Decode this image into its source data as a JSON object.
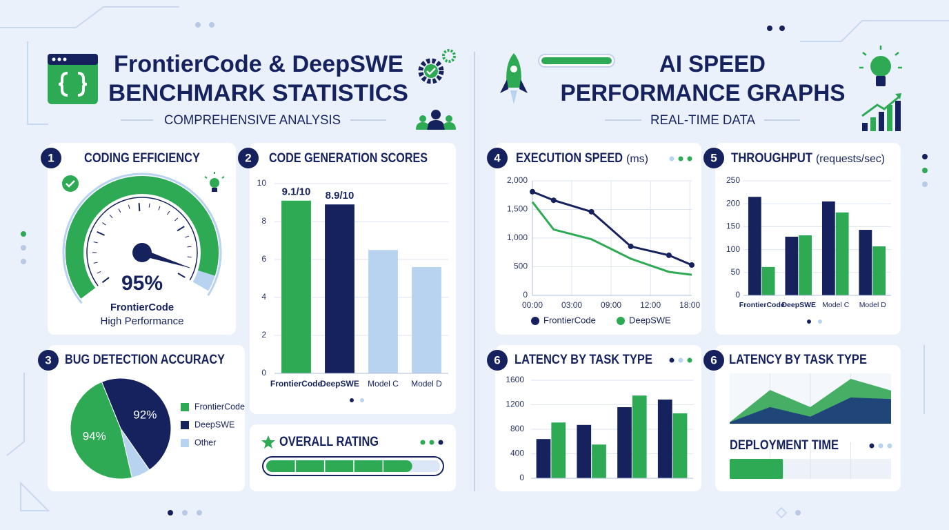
{
  "left_header": {
    "title_line1": "FrontierCode & DeepSWE",
    "title_line2": "BENCHMARK STATISTICS",
    "subtitle": "COMPREHENSIVE ANALYSIS"
  },
  "right_header": {
    "title_line1": "AI SPEED",
    "title_line2": "PERFORMANCE GRAPHS",
    "subtitle": "REAL-TIME DATA"
  },
  "chart_data": [
    {
      "type": "gauge",
      "number": "1",
      "title": "CODING EFFICIENCY",
      "value": 95,
      "value_label": "95%",
      "label": "FrontierCode",
      "sublabel": "High Performance",
      "ylim": [
        0,
        100
      ],
      "color": "#2eaa55",
      "track_color": "#b8d3f0"
    },
    {
      "type": "bar",
      "number": "2",
      "title": "CODE GENERATION SCORES",
      "categories": [
        "FrontierCode",
        "DeepSWE",
        "Model C",
        "Model D"
      ],
      "values": [
        9.1,
        8.9,
        6.5,
        5.6
      ],
      "value_labels": [
        "9.1/10",
        "8.9/10",
        null,
        null
      ],
      "colors": [
        "#2eaa55",
        "#16225e",
        "#b8d3f0",
        "#b8d3f0"
      ],
      "ylim": [
        0,
        10
      ],
      "yticks": [
        0,
        2,
        4,
        6,
        8,
        10
      ],
      "grid": true
    },
    {
      "type": "pie",
      "number": "3",
      "title": "BUG DETECTION ACCURACY",
      "categories": [
        "FrontierCode",
        "DeepSWE",
        "Other"
      ],
      "values": [
        94,
        92,
        12
      ],
      "value_labels": [
        "94%",
        "92%",
        null
      ],
      "colors": [
        "#2eaa55",
        "#16225e",
        "#b8d3f0"
      ],
      "legend": "right"
    },
    {
      "type": "progress",
      "title": "OVERALL RATING",
      "value": 84,
      "ylim": [
        0,
        100
      ],
      "color": "#2eaa55"
    },
    {
      "type": "line",
      "number": "4",
      "title": "EXECUTION SPEED",
      "unit": "(ms)",
      "x": [
        0,
        0.54,
        1.5,
        2.5,
        3.47,
        4.05
      ],
      "xlim": [
        0,
        4.05
      ],
      "xticks": [
        {
          "value": 0,
          "label": "00:00"
        },
        {
          "value": 1,
          "label": "03:00"
        },
        {
          "value": 2,
          "label": "09:00"
        },
        {
          "value": 3,
          "label": "12:00"
        },
        {
          "value": 4,
          "label": "18:00"
        }
      ],
      "ylim": [
        0,
        2000
      ],
      "yticks": [
        0,
        500,
        {
          "value": 1000,
          "label": "1,000"
        },
        {
          "value": 1500,
          "label": "1,500"
        },
        {
          "value": 2000,
          "label": "2,000"
        }
      ],
      "series": [
        {
          "name": "FrontierCode",
          "color": "#16225e",
          "values": [
            1810,
            1660,
            1460,
            855,
            700,
            530
          ]
        },
        {
          "name": "DeepSWE",
          "color": "#2eaa55",
          "values": [
            1630,
            1150,
            980,
            640,
            410,
            360
          ]
        }
      ],
      "grid": true,
      "legend": "bottom"
    },
    {
      "type": "bar",
      "number": "5",
      "title": "THROUGHPUT",
      "unit": "(requests/sec)",
      "categories": [
        "FrontierCode",
        "DeepSWE",
        "Model C",
        "Model D"
      ],
      "series": [
        {
          "color": "#16225e",
          "values": [
            215,
            128,
            205,
            143
          ]
        },
        {
          "color": "#2eaa55",
          "values": [
            62,
            131,
            181,
            107
          ]
        }
      ],
      "ylim": [
        0,
        250
      ],
      "yticks": [
        0,
        50,
        100,
        150,
        200,
        250
      ],
      "grid": true
    },
    {
      "type": "bar",
      "number": "6",
      "title": "LATENCY BY TASK TYPE",
      "categories": [
        null,
        null,
        null,
        null
      ],
      "series": [
        {
          "color": "#16225e",
          "values": [
            640,
            870,
            1160,
            1285
          ]
        },
        {
          "color": "#2eaa55",
          "values": [
            910,
            550,
            1350,
            1060
          ]
        }
      ],
      "ylim": [
        0,
        1600
      ],
      "yticks": [
        0,
        400,
        800,
        1200,
        1600
      ],
      "grid": true
    },
    {
      "type": "area",
      "number": "6",
      "title": "LATENCY BY TASK TYPE",
      "series": [
        {
          "color": "#3daa5e",
          "values": [
            3,
            67,
            33,
            89,
            66
          ]
        },
        {
          "color": "#1f3f7a",
          "values": [
            3,
            33,
            14,
            52,
            49
          ]
        }
      ],
      "ylim": [
        0,
        100
      ],
      "grid": true
    },
    {
      "type": "progress",
      "title": "DEPLOYMENT TIME",
      "value": 33,
      "ylim": [
        0,
        100
      ],
      "color": "#2eaa55"
    }
  ]
}
